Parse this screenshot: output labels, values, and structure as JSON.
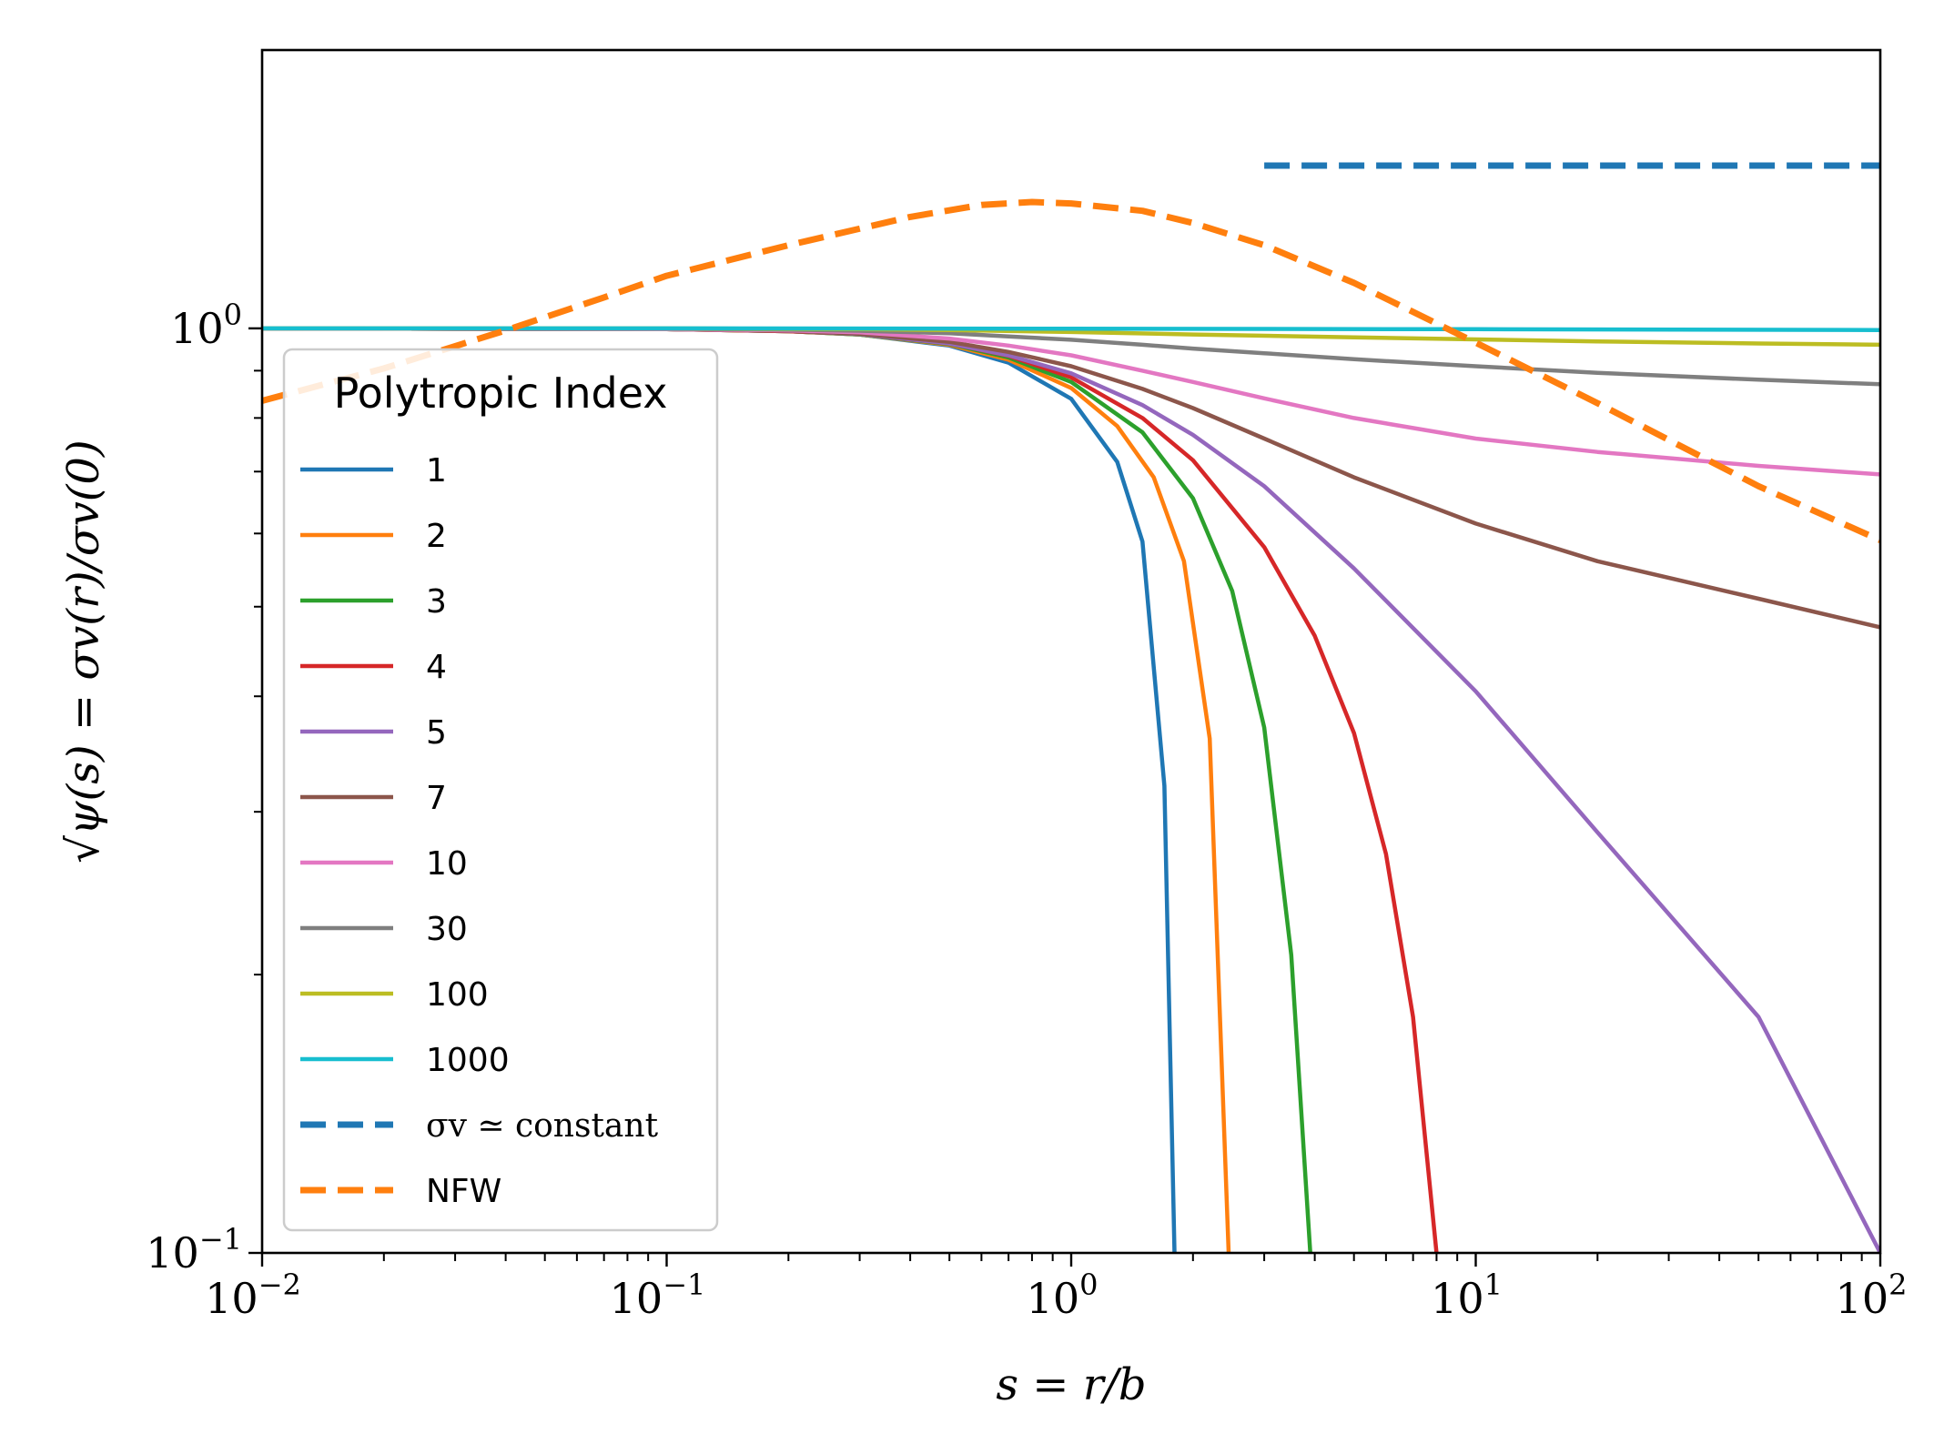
{
  "chart_data": {
    "type": "line",
    "xscale": "log",
    "yscale": "log",
    "xlim": [
      0.01,
      100
    ],
    "ylim": [
      0.1,
      2.0
    ],
    "xlabel": "s = r/b",
    "ylabel": "√ψ(s) = σv(r)/σv(0)",
    "x_ticks": [
      {
        "base": "10",
        "exp": "−2"
      },
      {
        "base": "10",
        "exp": "−1"
      },
      {
        "base": "10",
        "exp": "0"
      },
      {
        "base": "10",
        "exp": "1"
      },
      {
        "base": "10",
        "exp": "2"
      }
    ],
    "y_ticks": [
      {
        "base": "10",
        "exp": "−1"
      },
      {
        "base": "10",
        "exp": "0"
      }
    ],
    "legend": {
      "title": "Polytropic Index",
      "position": "lower-left"
    },
    "series": [
      {
        "name": "1",
        "color": "#1f77b4",
        "style": "solid",
        "x": [
          0.01,
          0.1,
          0.2,
          0.3,
          0.5,
          0.7,
          1.0,
          1.3,
          1.5,
          1.7,
          1.8
        ],
        "y": [
          1.0,
          0.998,
          0.993,
          0.985,
          0.958,
          0.918,
          0.839,
          0.717,
          0.588,
          0.32,
          0.1
        ]
      },
      {
        "name": "2",
        "color": "#ff7f0e",
        "style": "solid",
        "x": [
          0.01,
          0.1,
          0.2,
          0.3,
          0.5,
          0.7,
          1.0,
          1.3,
          1.6,
          1.9,
          2.2,
          2.45
        ],
        "y": [
          1.0,
          0.998,
          0.993,
          0.985,
          0.96,
          0.925,
          0.862,
          0.784,
          0.69,
          0.56,
          0.36,
          0.1
        ]
      },
      {
        "name": "3",
        "color": "#2ca02c",
        "style": "solid",
        "x": [
          0.01,
          0.1,
          0.2,
          0.3,
          0.5,
          0.7,
          1.0,
          1.5,
          2.0,
          2.5,
          3.0,
          3.5,
          3.9
        ],
        "y": [
          1.0,
          0.998,
          0.993,
          0.985,
          0.962,
          0.93,
          0.875,
          0.772,
          0.655,
          0.52,
          0.37,
          0.21,
          0.1
        ]
      },
      {
        "name": "4",
        "color": "#d62728",
        "style": "solid",
        "x": [
          0.01,
          0.1,
          0.2,
          0.3,
          0.5,
          0.7,
          1.0,
          1.5,
          2.0,
          3.0,
          4.0,
          5.0,
          6.0,
          7.0,
          8.0
        ],
        "y": [
          1.0,
          0.998,
          0.993,
          0.986,
          0.963,
          0.934,
          0.885,
          0.8,
          0.72,
          0.58,
          0.465,
          0.365,
          0.27,
          0.18,
          0.1
        ]
      },
      {
        "name": "5",
        "color": "#9467bd",
        "style": "solid",
        "x": [
          0.01,
          0.1,
          0.2,
          0.3,
          0.5,
          0.7,
          1.0,
          1.5,
          2.0,
          3.0,
          5.0,
          10.0,
          20.0,
          50.0,
          100.0
        ],
        "y": [
          1.0,
          0.998,
          0.994,
          0.986,
          0.963,
          0.935,
          0.894,
          0.826,
          0.767,
          0.675,
          0.55,
          0.405,
          0.285,
          0.18,
          0.1
        ]
      },
      {
        "name": "7",
        "color": "#8c564b",
        "style": "solid",
        "x": [
          0.01,
          0.1,
          0.2,
          0.3,
          0.5,
          0.7,
          1.0,
          1.5,
          2.0,
          3.0,
          5.0,
          10.0,
          20.0,
          50.0,
          100.0
        ],
        "y": [
          1.0,
          0.998,
          0.994,
          0.987,
          0.967,
          0.943,
          0.91,
          0.86,
          0.82,
          0.76,
          0.69,
          0.615,
          0.56,
          0.51,
          0.475
        ]
      },
      {
        "name": "10",
        "color": "#e377c2",
        "style": "solid",
        "x": [
          0.01,
          0.1,
          0.2,
          0.3,
          0.5,
          0.7,
          1.0,
          1.5,
          2.0,
          3.0,
          5.0,
          10.0,
          20.0,
          50.0,
          100.0
        ],
        "y": [
          1.0,
          0.998,
          0.995,
          0.99,
          0.975,
          0.958,
          0.935,
          0.9,
          0.875,
          0.84,
          0.8,
          0.76,
          0.735,
          0.71,
          0.695
        ]
      },
      {
        "name": "30",
        "color": "#7f7f7f",
        "style": "solid",
        "x": [
          0.01,
          0.1,
          0.2,
          0.3,
          0.5,
          0.7,
          1.0,
          1.5,
          2.0,
          3.0,
          5.0,
          10.0,
          20.0,
          50.0,
          100.0
        ],
        "y": [
          1.0,
          0.999,
          0.997,
          0.994,
          0.988,
          0.98,
          0.972,
          0.96,
          0.951,
          0.94,
          0.926,
          0.91,
          0.895,
          0.88,
          0.87
        ]
      },
      {
        "name": "100",
        "color": "#bcbd22",
        "style": "solid",
        "x": [
          0.01,
          0.1,
          0.3,
          0.5,
          1.0,
          2.0,
          5.0,
          10.0,
          20.0,
          50.0,
          100.0
        ],
        "y": [
          1.0,
          1.0,
          0.998,
          0.996,
          0.991,
          0.985,
          0.978,
          0.973,
          0.968,
          0.963,
          0.96
        ]
      },
      {
        "name": "1000",
        "color": "#17becf",
        "style": "solid",
        "x": [
          0.01,
          0.1,
          1.0,
          10.0,
          100.0
        ],
        "y": [
          1.0,
          1.0,
          0.999,
          0.998,
          0.996
        ]
      },
      {
        "name": "σv ≃ constant",
        "color": "#1f77b4",
        "style": "dashed",
        "x": [
          3.0,
          100.0
        ],
        "y": [
          1.5,
          1.5
        ]
      },
      {
        "name": "NFW",
        "color": "#ff7f0e",
        "style": "dashed",
        "x": [
          0.01,
          0.02,
          0.04,
          0.07,
          0.1,
          0.2,
          0.4,
          0.6,
          0.8,
          1.0,
          1.5,
          2.0,
          3.0,
          5.0,
          10.0,
          20.0,
          50.0,
          100.0
        ],
        "y": [
          0.835,
          0.905,
          0.995,
          1.08,
          1.14,
          1.23,
          1.32,
          1.36,
          1.37,
          1.365,
          1.34,
          1.3,
          1.23,
          1.12,
          0.965,
          0.83,
          0.675,
          0.59
        ]
      }
    ]
  }
}
